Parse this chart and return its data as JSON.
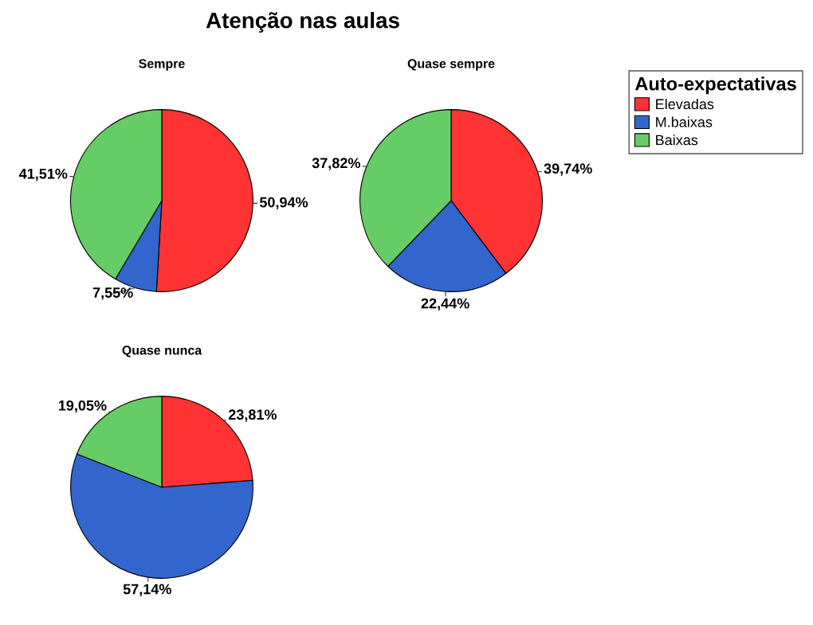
{
  "chart_data": [
    {
      "type": "pie",
      "title": "Sempre",
      "annotations": [
        "Atenção nas aulas"
      ],
      "categories": [
        "Elevadas",
        "M.baixas",
        "Baixas"
      ],
      "values": [
        50.94,
        7.55,
        41.51
      ],
      "colors": [
        "#ff3333",
        "#3366cc",
        "#66cc66"
      ],
      "value_labels": [
        "50,94%",
        "7,55%",
        "41,51%"
      ],
      "legend": "top right",
      "legend_title": "Auto-expectativas"
    },
    {
      "type": "pie",
      "title": "Quase sempre",
      "categories": [
        null,
        null,
        null
      ],
      "values": [
        39.74,
        22.44,
        37.82
      ],
      "colors": [
        "#ff3333",
        "#3366cc",
        "#66cc66"
      ],
      "value_labels": [
        "39,74%",
        "22,44%",
        "37,82%"
      ]
    },
    {
      "type": "pie",
      "title": "Quase nunca",
      "categories": [
        null,
        null,
        null
      ],
      "values": [
        23.81,
        57.14,
        19.05
      ],
      "colors": [
        "#ff3333",
        "#3366cc",
        "#66cc66"
      ],
      "value_labels": [
        "23,81%",
        "57,14%",
        "19,05%"
      ]
    }
  ]
}
